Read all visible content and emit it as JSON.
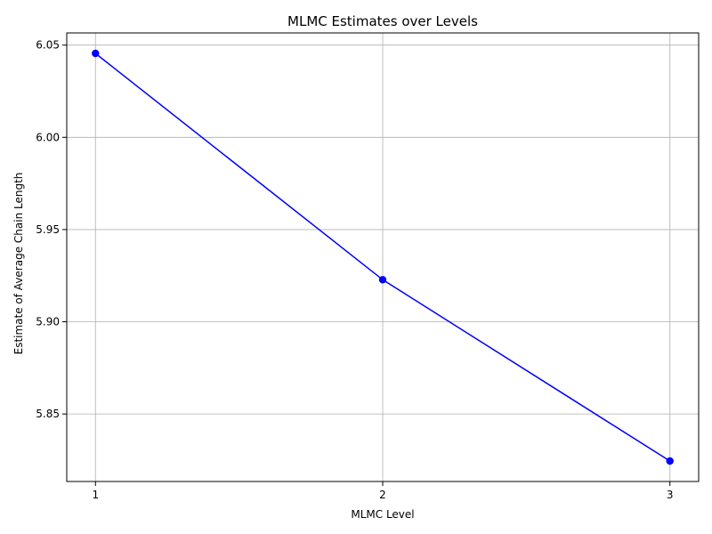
{
  "chart_data": {
    "type": "line",
    "title": "MLMC Estimates over Levels",
    "xlabel": "MLMC Level",
    "ylabel": "Estimate of Average Chain Length",
    "x": [
      1,
      2,
      3
    ],
    "series": [
      {
        "values": [
          6.0455,
          5.9228,
          5.8245
        ],
        "color": "#0000ff",
        "marker": "circle"
      }
    ],
    "xticks": [
      1,
      2,
      3
    ],
    "yticks": [
      5.85,
      5.9,
      5.95,
      6.0,
      6.05
    ],
    "ytick_labels": [
      "5.85",
      "5.90",
      "5.95",
      "6.00",
      "6.05"
    ],
    "xlim": [
      0.9,
      3.1
    ],
    "ylim": [
      5.8134,
      6.0566
    ],
    "grid": true
  }
}
